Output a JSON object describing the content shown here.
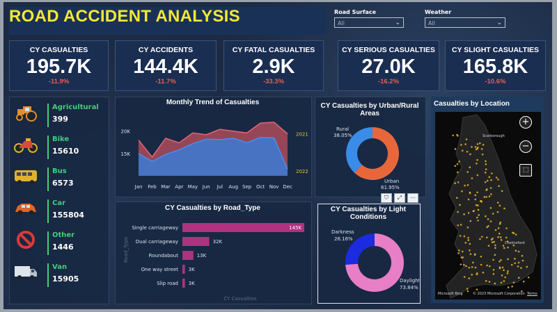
{
  "title": "ROAD ACCIDENT ANALYSIS",
  "filters": {
    "road_surface": {
      "label": "Road Surface",
      "value": "All"
    },
    "weather": {
      "label": "Weather",
      "value": "All"
    }
  },
  "kpis": [
    {
      "label": "CY CASUALTIES",
      "value": "195.7K",
      "change": "-11.9%"
    },
    {
      "label": "CY ACCIDENTS",
      "value": "144.4K",
      "change": "-11.7%"
    },
    {
      "label": "CY FATAL CASUALTIES",
      "value": "2.9K",
      "change": "-33.3%"
    },
    {
      "label": "CY SERIOUS CASUALTIES",
      "value": "27.0K",
      "change": "-16.2%"
    },
    {
      "label": "CY SLIGHT CASUALTIES",
      "value": "165.8K",
      "change": "-10.6%"
    }
  ],
  "vehicles": [
    {
      "name": "Agricultural",
      "value": "399",
      "icon": "tractor-icon",
      "color": "#e0902a"
    },
    {
      "name": "Bike",
      "value": "15610",
      "icon": "bike-icon",
      "color": "#d94a3a"
    },
    {
      "name": "Bus",
      "value": "6573",
      "icon": "bus-icon",
      "color": "#e0b12a"
    },
    {
      "name": "Car",
      "value": "155804",
      "icon": "car-icon",
      "color": "#e0662a"
    },
    {
      "name": "Other",
      "value": "1446",
      "icon": "no-entry-icon",
      "color": "#d93a3a"
    },
    {
      "name": "Van",
      "value": "15905",
      "icon": "van-icon",
      "color": "#9aa6b4"
    }
  ],
  "monthly": {
    "title": "Monthly Trend of Casualties",
    "months": [
      "Jan",
      "Feb",
      "Mar",
      "Apr",
      "May",
      "Jun",
      "Jul",
      "Aug",
      "Sep",
      "Oct",
      "Nov",
      "Dec"
    ],
    "y_ticks": [
      "20K",
      "15K"
    ],
    "y_tick_values": [
      20000,
      15000
    ],
    "ylim": [
      10000,
      24000
    ],
    "series": [
      {
        "name": "2021",
        "values": [
          18000,
          14200,
          18400,
          17400,
          19600,
          19200,
          20400,
          20000,
          19600,
          21800,
          22000,
          19400
        ],
        "color": "#c0505e"
      },
      {
        "name": "2022",
        "values": [
          15000,
          13200,
          14800,
          15800,
          17200,
          18200,
          18100,
          18400,
          17400,
          18600,
          18500,
          11500
        ],
        "color": "#3a7bd5"
      }
    ]
  },
  "road_type": {
    "title": "CY Casualties by Road_Type",
    "axis_label": "Road_Type",
    "x_axis_label": "CY Casualties",
    "categories": [
      "Single carriageway",
      "Dual carriageway",
      "Roundabout",
      "One way street",
      "Slip road"
    ],
    "values": [
      145,
      32,
      13,
      3,
      3
    ],
    "labels": [
      "145K",
      "32K",
      "13K",
      "3K",
      "3K"
    ],
    "color": "#b0327e"
  },
  "urban_rural": {
    "title": "CY Casualties by Urban/Rural Areas",
    "slices": [
      {
        "name": "Rural",
        "pct": "38.05%",
        "value": 38.05,
        "color": "#3a8ce8"
      },
      {
        "name": "Urban",
        "pct": "61.95%",
        "value": 61.95,
        "color": "#e8673a"
      }
    ]
  },
  "light": {
    "title": "CY Casualties by Light Conditions",
    "slices": [
      {
        "name": "Darkness",
        "pct": "26.16%",
        "value": 26.16,
        "color": "#1a2be0"
      },
      {
        "name": "Daylight",
        "pct": "73.84%",
        "value": 73.84,
        "color": "#e87ec6"
      }
    ]
  },
  "map": {
    "title": "Casualties by Location",
    "places": [
      "Scarborough",
      "Chelmsford"
    ],
    "attribution": "© 2023 Microsoft Corporation",
    "terms": "Terms",
    "brand": "Microsoft Bing"
  }
}
